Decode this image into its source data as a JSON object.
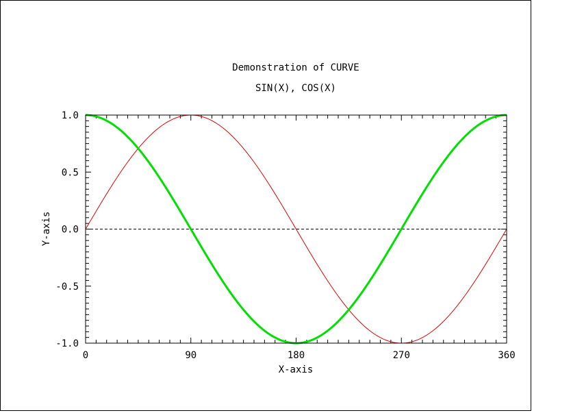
{
  "chart_data": {
    "type": "line",
    "title": "Demonstration of CURVE",
    "subtitle": "SIN(X), COS(X)",
    "xlabel": "X-axis",
    "ylabel": "Y-axis",
    "xlim": [
      0,
      360
    ],
    "ylim": [
      -1.0,
      1.0
    ],
    "xticks": [
      0,
      90,
      180,
      270,
      360
    ],
    "xtick_labels": [
      "0",
      "90",
      "180",
      "270",
      "360"
    ],
    "yticks": [
      -1.0,
      -0.5,
      0.0,
      0.5,
      1.0
    ],
    "ytick_labels": [
      "-1.0",
      "-0.5",
      "0.0",
      "0.5",
      "1.0"
    ],
    "grid": false,
    "reference_line": {
      "y": 0.0,
      "style": "dashed",
      "color": "#000000"
    },
    "series": [
      {
        "function": "sin",
        "color": "#e00000",
        "x": [
          0,
          15,
          30,
          45,
          60,
          75,
          90,
          105,
          120,
          135,
          150,
          165,
          180,
          195,
          210,
          225,
          240,
          255,
          270,
          285,
          300,
          315,
          330,
          345,
          360
        ],
        "y": [
          0.0,
          0.259,
          0.5,
          0.707,
          0.866,
          0.966,
          1.0,
          0.966,
          0.866,
          0.707,
          0.5,
          0.259,
          0.0,
          -0.259,
          -0.5,
          -0.707,
          -0.866,
          -0.966,
          -1.0,
          -0.966,
          -0.866,
          -0.707,
          -0.5,
          -0.259,
          0.0
        ]
      },
      {
        "function": "cos",
        "color": "#00e000",
        "x": [
          0,
          15,
          30,
          45,
          60,
          75,
          90,
          105,
          120,
          135,
          150,
          165,
          180,
          195,
          210,
          225,
          240,
          255,
          270,
          285,
          300,
          315,
          330,
          345,
          360
        ],
        "y": [
          1.0,
          0.966,
          0.866,
          0.707,
          0.5,
          0.259,
          0.0,
          -0.259,
          -0.5,
          -0.707,
          -0.866,
          -0.966,
          -1.0,
          -0.966,
          -0.866,
          -0.707,
          -0.5,
          -0.259,
          0.0,
          0.259,
          0.5,
          0.707,
          0.866,
          0.966,
          1.0
        ]
      }
    ]
  }
}
